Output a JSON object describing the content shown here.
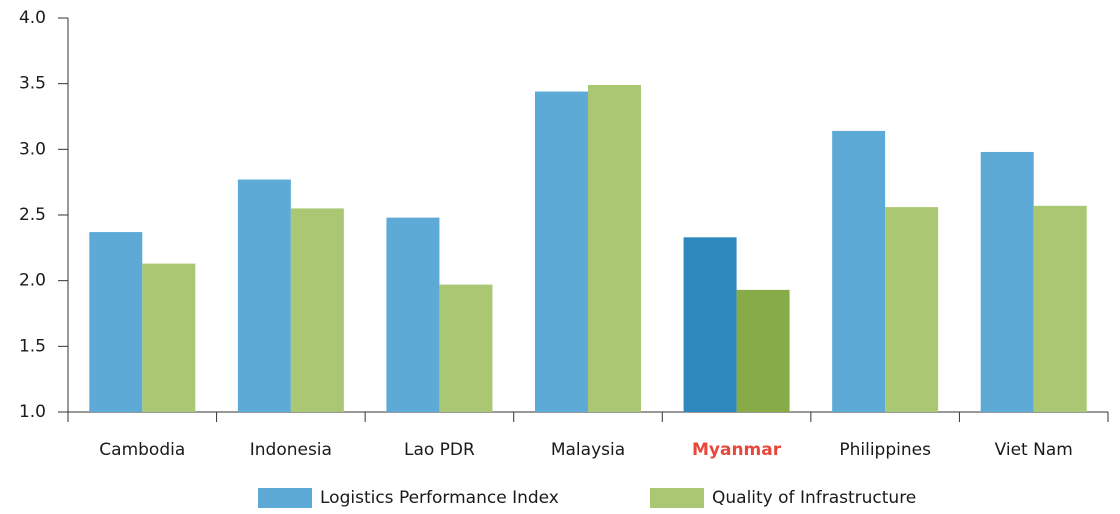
{
  "chart_data": {
    "type": "bar",
    "categories": [
      "Cambodia",
      "Indonesia",
      "Lao PDR",
      "Malaysia",
      "Myanmar",
      "Philippines",
      "Viet Nam"
    ],
    "series": [
      {
        "name": "Logistics Performance Index",
        "color": "#5eaad6",
        "values": [
          2.37,
          2.77,
          2.48,
          3.44,
          2.33,
          3.14,
          2.98
        ]
      },
      {
        "name": "Quality of Infrastructure",
        "color": "#aac774",
        "values": [
          2.13,
          2.55,
          1.97,
          3.49,
          1.93,
          2.56,
          2.57
        ]
      }
    ],
    "highlight_index": 4,
    "highlight_colors": [
      "#2e88bd",
      "#86ab47"
    ],
    "highlight_label_color": "#e8473c",
    "ylim": [
      1.0,
      4.0
    ],
    "yticks": [
      {
        "value": 1,
        "label": "1.0"
      },
      {
        "value": 1.5,
        "label": "1.5"
      },
      {
        "value": 2,
        "label": "2.0"
      },
      {
        "value": 2.5,
        "label": "2.5"
      },
      {
        "value": 3,
        "label": "3.0"
      },
      {
        "value": 3.5,
        "label": "3.5"
      },
      {
        "value": 4,
        "label": "4.0"
      }
    ],
    "grid": false,
    "legend": "bottom"
  }
}
